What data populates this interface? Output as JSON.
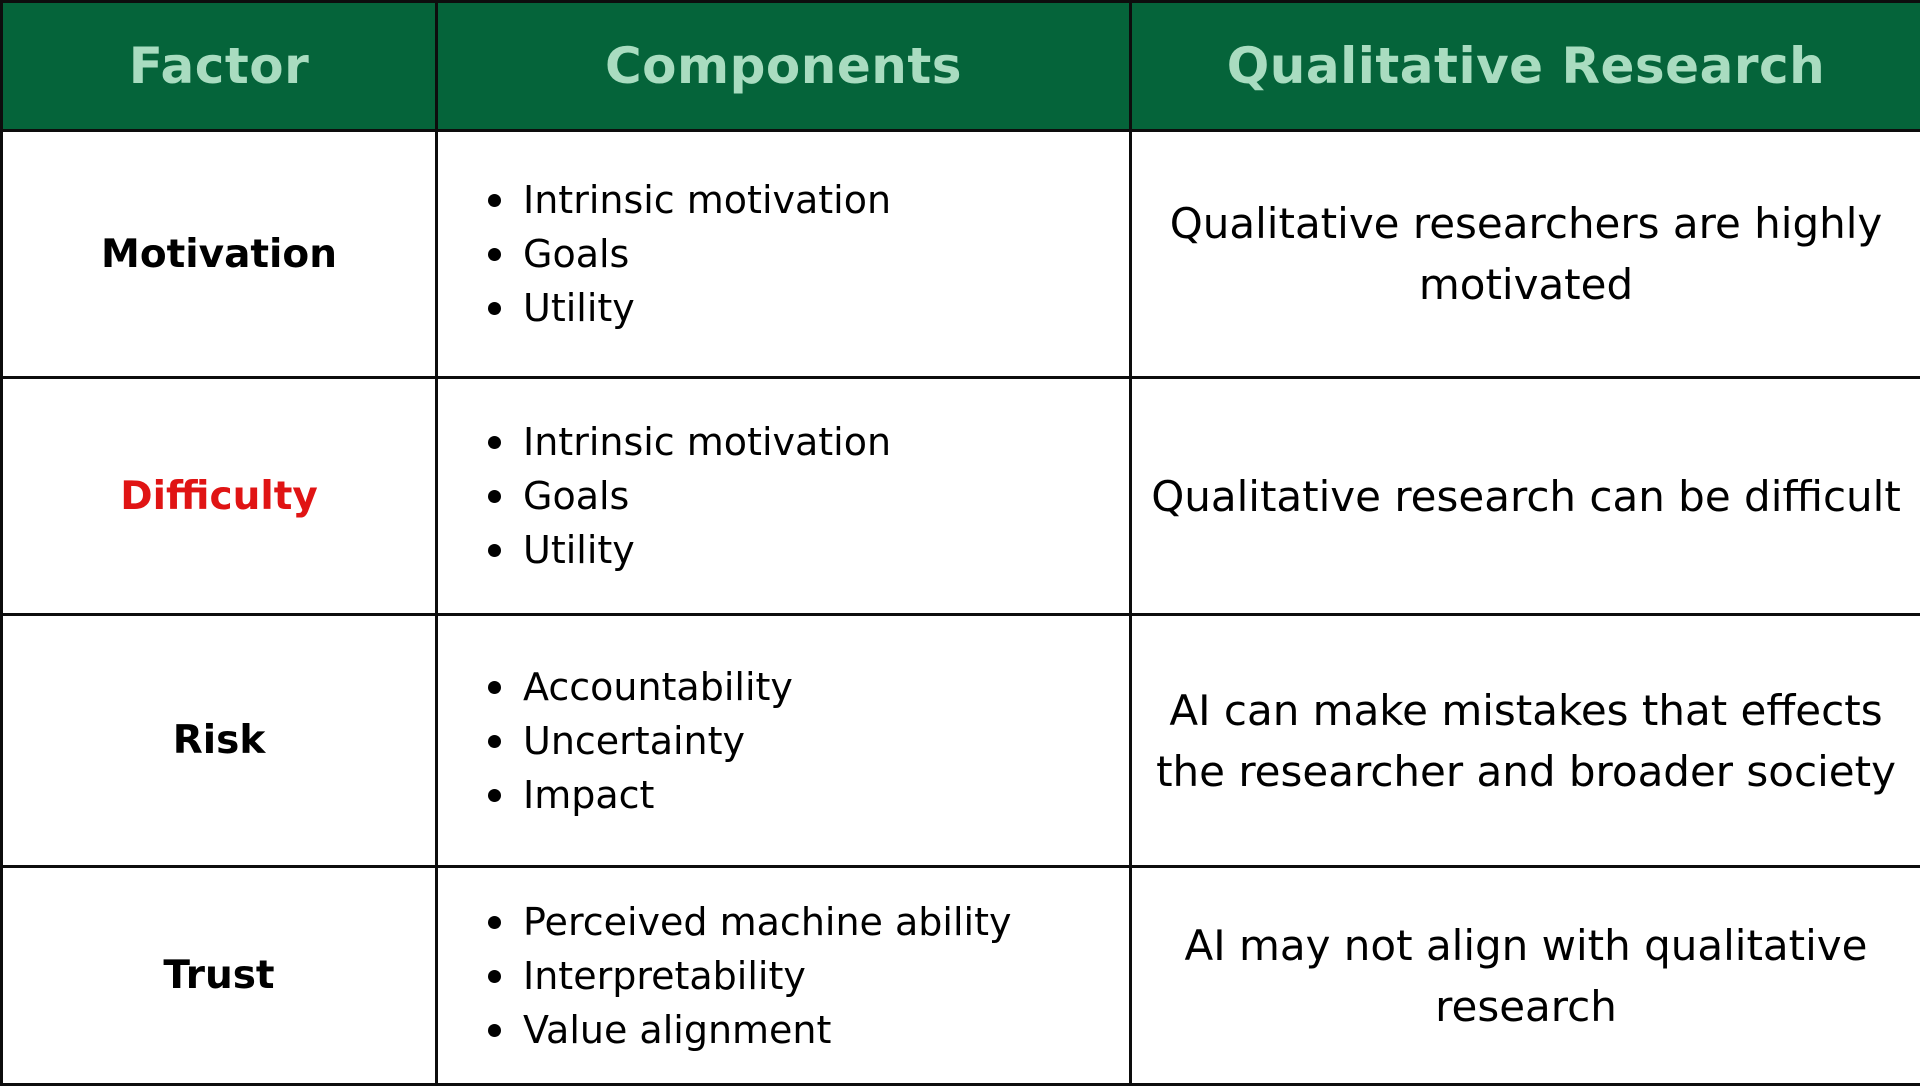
{
  "table": {
    "headers": [
      "Factor",
      "Components",
      "Qualitative Research"
    ],
    "header_bg": "#05643a",
    "header_text_color": "#a9dcc0",
    "highlight_color": "#e01414",
    "rows": [
      {
        "factor": "Motivation",
        "components": [
          "Intrinsic motivation",
          "Goals",
          "Utility"
        ],
        "qualitative_research": "Qualitative researchers are highly motivated"
      },
      {
        "factor": "Difficulty",
        "factor_color": "#e01414",
        "components": [
          "Intrinsic motivation",
          "Goals",
          "Utility"
        ],
        "qualitative_research": "Qualitative research can be difficult"
      },
      {
        "factor": "Risk",
        "components": [
          "Accountability",
          "Uncertainty",
          "Impact"
        ],
        "qualitative_research": "AI can make mistakes that effects the researcher and broader society"
      },
      {
        "factor": "Trust",
        "components": [
          "Perceived machine ability",
          "Interpretability",
          "Value alignment"
        ],
        "qualitative_research": "AI may not align with qualitative research"
      }
    ]
  }
}
